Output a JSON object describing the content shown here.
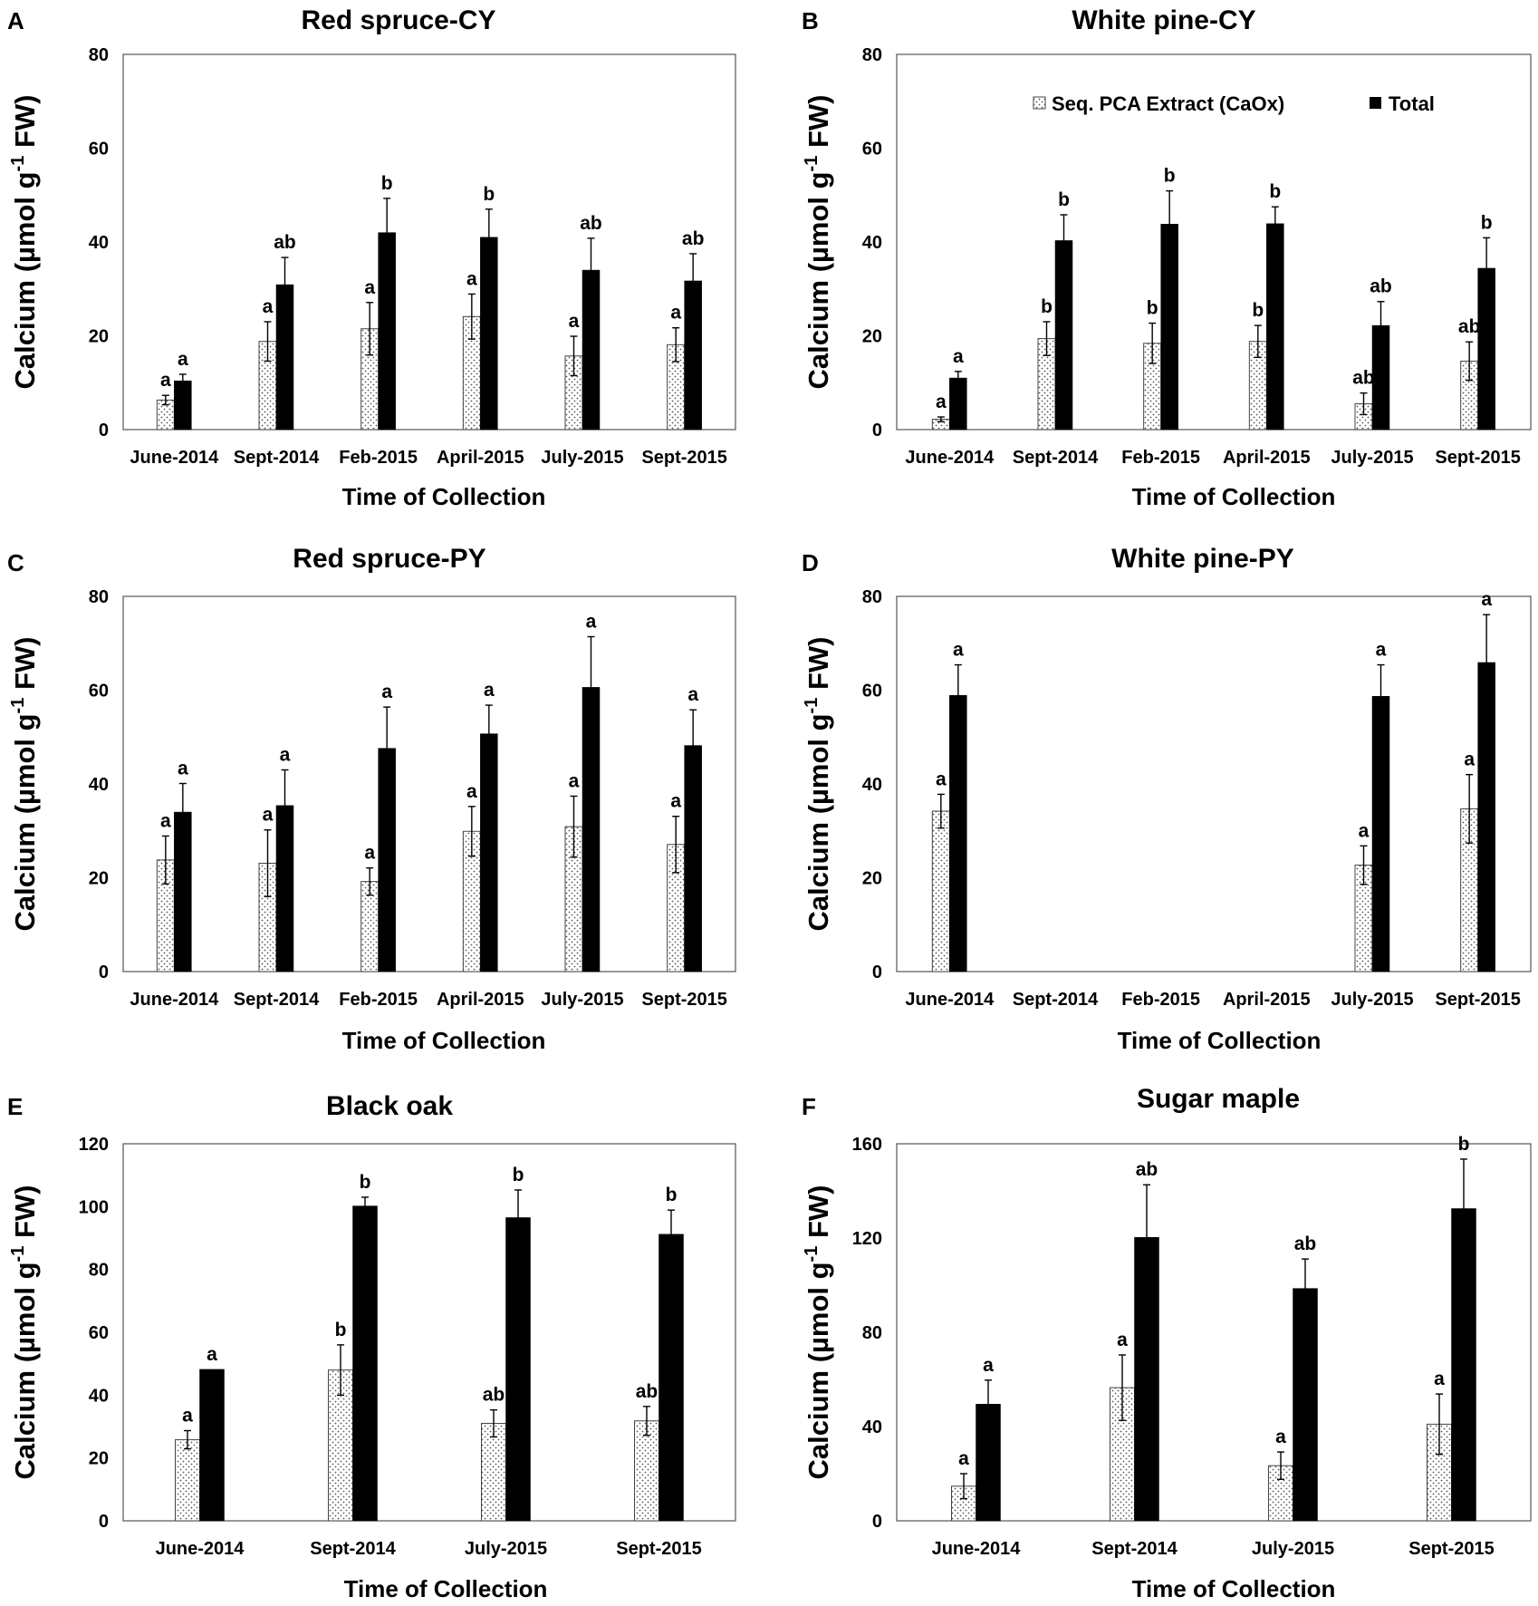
{
  "figure": {
    "legend": [
      {
        "name": "Seq. PCA Extract (CaOx)",
        "pattern": "dotted"
      },
      {
        "name": "Total",
        "color": "#000000"
      }
    ],
    "colors": {
      "total": "#000000",
      "extract_fill": "#ffffff",
      "extract_dots": "#555555",
      "axis": "#000000"
    }
  },
  "chart_data": [
    {
      "panel": "A",
      "type": "bar",
      "title": "Red spruce-CY",
      "xlabel": "Time of Collection",
      "ylabel_main": "Calcium (µmol g",
      "ylabel_sup": "-1",
      "ylabel_tail": " FW)",
      "ylim": [
        0,
        80
      ],
      "yticks": [
        0,
        20,
        40,
        60,
        80
      ],
      "categories": [
        "June-2014",
        "Sept-2014",
        "Feb-2015",
        "April-2015",
        "July-2015",
        "Sept-2015"
      ],
      "series": [
        {
          "name": "Seq. PCA Extract (CaOx)",
          "values": [
            6.3,
            18.8,
            21.5,
            24.1,
            15.7,
            18.1
          ],
          "errors": [
            1.0,
            4.2,
            5.6,
            4.8,
            4.2,
            3.6
          ],
          "labels": [
            "a",
            "a",
            "a",
            "a",
            "a",
            "a"
          ]
        },
        {
          "name": "Total",
          "values": [
            10.4,
            30.9,
            42.0,
            41.0,
            34.0,
            31.7
          ],
          "errors": [
            1.4,
            5.8,
            7.3,
            6.0,
            6.8,
            5.8
          ],
          "labels": [
            "a",
            "ab",
            "b",
            "b",
            "ab",
            "ab"
          ]
        }
      ]
    },
    {
      "panel": "B",
      "type": "bar",
      "title": "White pine-CY",
      "xlabel": "Time of Collection",
      "ylabel_main": "Calcium (µmol g",
      "ylabel_sup": "-1",
      "ylabel_tail": " FW)",
      "ylim": [
        0,
        80
      ],
      "yticks": [
        0,
        20,
        40,
        60,
        80
      ],
      "show_legend": true,
      "categories": [
        "June-2014",
        "Sept-2014",
        "Feb-2015",
        "April-2015",
        "July-2015",
        "Sept-2015"
      ],
      "series": [
        {
          "name": "Seq. PCA Extract (CaOx)",
          "values": [
            2.2,
            19.4,
            18.4,
            18.8,
            5.5,
            14.6
          ],
          "errors": [
            0.5,
            3.6,
            4.3,
            3.4,
            2.3,
            4.1
          ],
          "labels": [
            "a",
            "b",
            "b",
            "b",
            "ab",
            "ab"
          ]
        },
        {
          "name": "Total",
          "values": [
            11.0,
            40.3,
            43.8,
            43.9,
            22.2,
            34.4
          ],
          "errors": [
            1.4,
            5.5,
            7.1,
            3.6,
            5.1,
            6.5
          ],
          "labels": [
            "a",
            "b",
            "b",
            "b",
            "ab",
            "b"
          ]
        }
      ]
    },
    {
      "panel": "C",
      "type": "bar",
      "title": "Red spruce-PY",
      "xlabel": "Time of Collection",
      "ylabel_main": "Calcium (µmol g",
      "ylabel_sup": "-1",
      "ylabel_tail": " FW)",
      "ylim": [
        0,
        80
      ],
      "yticks": [
        0,
        20,
        40,
        60,
        80
      ],
      "categories": [
        "June-2014",
        "Sept-2014",
        "Feb-2015",
        "April-2015",
        "July-2015",
        "Sept-2015"
      ],
      "series": [
        {
          "name": "Seq. PCA Extract (CaOx)",
          "values": [
            23.8,
            23.1,
            19.2,
            29.9,
            30.9,
            27.1
          ],
          "errors": [
            5.1,
            7.1,
            2.9,
            5.3,
            6.5,
            6.0
          ],
          "labels": [
            "a",
            "a",
            "a",
            "a",
            "a",
            "a"
          ]
        },
        {
          "name": "Total",
          "values": [
            34.0,
            35.4,
            47.6,
            50.7,
            60.6,
            48.2
          ],
          "errors": [
            6.1,
            7.6,
            8.8,
            6.1,
            10.8,
            7.6
          ],
          "labels": [
            "a",
            "a",
            "a",
            "a",
            "a",
            "a"
          ]
        }
      ]
    },
    {
      "panel": "D",
      "type": "bar",
      "title": "White pine-PY",
      "xlabel": "Time of Collection",
      "ylabel_main": "Calcium (µmol g",
      "ylabel_sup": "-1",
      "ylabel_tail": " FW)",
      "ylim": [
        0,
        80
      ],
      "yticks": [
        0,
        20,
        40,
        60,
        80
      ],
      "categories": [
        "June-2014",
        "Sept-2014",
        "Feb-2015",
        "April-2015",
        "July-2015",
        "Sept-2015"
      ],
      "series": [
        {
          "name": "Seq. PCA Extract (CaOx)",
          "values": [
            34.2,
            null,
            null,
            null,
            22.7,
            34.7
          ],
          "errors": [
            3.6,
            null,
            null,
            null,
            4.1,
            7.3
          ],
          "labels": [
            "a",
            "",
            "",
            "",
            "a",
            "a"
          ]
        },
        {
          "name": "Total",
          "values": [
            58.9,
            null,
            null,
            null,
            58.7,
            65.9
          ],
          "errors": [
            6.5,
            null,
            null,
            null,
            6.7,
            10.2
          ],
          "labels": [
            "a",
            "",
            "",
            "",
            "a",
            "a"
          ]
        }
      ]
    },
    {
      "panel": "E",
      "type": "bar",
      "title": "Black oak",
      "xlabel": "Time of Collection",
      "ylabel_main": "Calcium (µmol g",
      "ylabel_sup": "-1",
      "ylabel_tail": " FW)",
      "ylim": [
        0,
        120
      ],
      "yticks": [
        0,
        20,
        40,
        60,
        80,
        100,
        120
      ],
      "categories": [
        "June-2014",
        "Sept-2014",
        "July-2015",
        "Sept-2015"
      ],
      "series": [
        {
          "name": "Seq. PCA Extract (CaOx)",
          "values": [
            25.8,
            48.0,
            31.0,
            31.8
          ],
          "errors": [
            2.9,
            8.0,
            4.3,
            4.6
          ],
          "labels": [
            "a",
            "b",
            "ab",
            "ab"
          ]
        },
        {
          "name": "Total",
          "values": [
            48.2,
            100.2,
            96.5,
            91.2
          ],
          "errors": [
            0.0,
            2.8,
            8.8,
            7.7
          ],
          "labels": [
            "a",
            "b",
            "b",
            "b"
          ]
        }
      ]
    },
    {
      "panel": "F",
      "type": "bar",
      "title": "Sugar maple",
      "xlabel": "Time of Collection",
      "ylabel_main": "Calcium (µmol g",
      "ylabel_sup": "-1",
      "ylabel_tail": " FW)",
      "ylim": [
        0,
        160
      ],
      "yticks": [
        0,
        40,
        80,
        120,
        160
      ],
      "categories": [
        "June-2014",
        "Sept-2014",
        "July-2015",
        "Sept-2015"
      ],
      "series": [
        {
          "name": "Seq. PCA Extract (CaOx)",
          "values": [
            14.7,
            56.5,
            23.4,
            41.0
          ],
          "errors": [
            5.3,
            13.9,
            5.8,
            12.8
          ],
          "labels": [
            "a",
            "a",
            "a",
            "a"
          ]
        },
        {
          "name": "Total",
          "values": [
            49.5,
            120.3,
            98.6,
            132.5
          ],
          "errors": [
            10.2,
            22.3,
            12.5,
            21.0
          ],
          "labels": [
            "a",
            "ab",
            "ab",
            "b"
          ]
        }
      ]
    }
  ]
}
